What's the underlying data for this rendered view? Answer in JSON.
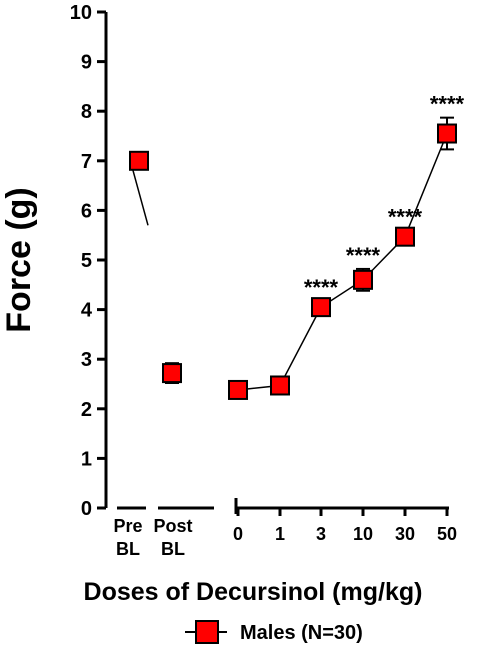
{
  "chart_data": {
    "type": "scatter",
    "ylabel": "Force (g)",
    "xlabel": "Doses of Decursinol (mg/kg)",
    "ylim": [
      0,
      10
    ],
    "yticks": [
      "0",
      "1",
      "2",
      "3",
      "4",
      "5",
      "6",
      "7",
      "8",
      "9",
      "10"
    ],
    "baseline_categories": [
      {
        "line1": "Pre",
        "line2": "BL",
        "value": 7.0,
        "error": 0.1
      },
      {
        "line1": "Post",
        "line2": "BL",
        "value": 2.72,
        "error": 0.2
      }
    ],
    "dose_categories": [
      "0",
      "1",
      "3",
      "10",
      "30",
      "50"
    ],
    "series": [
      {
        "name": "Males (N=30)",
        "color": "#ff0000",
        "values": [
          2.38,
          2.47,
          4.05,
          4.6,
          5.47,
          7.55
        ],
        "errors": [
          0.12,
          0.12,
          0.12,
          0.22,
          0.12,
          0.32
        ],
        "significance": [
          "",
          "",
          "****",
          "****",
          "****",
          "****"
        ]
      }
    ],
    "legend": {
      "label": "Males (N=30)",
      "position": "bottom"
    },
    "grid": false
  }
}
